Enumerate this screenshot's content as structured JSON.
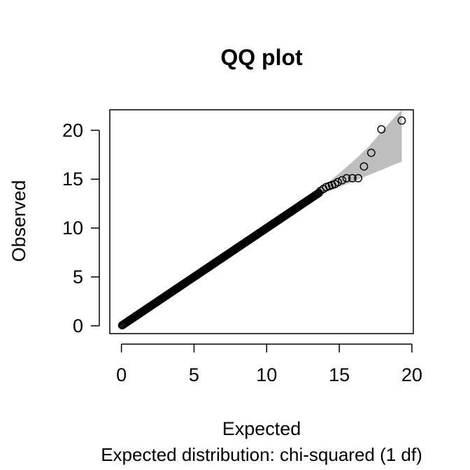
{
  "chart_data": {
    "type": "scatter",
    "title": "QQ plot",
    "xlabel": "Expected",
    "ylabel": "Observed",
    "subtitle": "Expected distribution: chi-squared (1 df)",
    "xlim": [
      -0.8,
      20.1
    ],
    "ylim": [
      -0.8,
      22.1
    ],
    "xticks": [
      0,
      5,
      10,
      15,
      20
    ],
    "yticks": [
      0,
      5,
      10,
      15,
      20
    ],
    "legend": "none",
    "grid": false,
    "colors": {
      "points": "#000000",
      "band": "#bebebe",
      "axes": "#000000"
    },
    "confidence_band": {
      "x": [
        13.0,
        14.0,
        15.0,
        16.0,
        17.0,
        18.0,
        18.6,
        19.3
      ],
      "lower": [
        12.9,
        13.6,
        14.2,
        14.8,
        15.4,
        16.0,
        16.4,
        16.8
      ],
      "upper": [
        13.2,
        14.4,
        15.6,
        16.9,
        18.3,
        20.0,
        21.0,
        22.1
      ]
    },
    "points_line": {
      "x_start": 0.05,
      "x_end": 13.6,
      "count": 220
    },
    "points_tail": {
      "x": [
        13.7,
        13.9,
        14.1,
        14.3,
        14.5,
        14.7,
        14.9,
        15.2,
        15.5,
        15.9,
        16.3,
        16.7,
        17.2,
        17.9,
        19.3
      ],
      "y": [
        13.8,
        14.0,
        14.2,
        14.3,
        14.4,
        14.5,
        14.7,
        14.9,
        15.1,
        15.1,
        15.1,
        16.3,
        17.7,
        20.1,
        21.0
      ]
    }
  }
}
